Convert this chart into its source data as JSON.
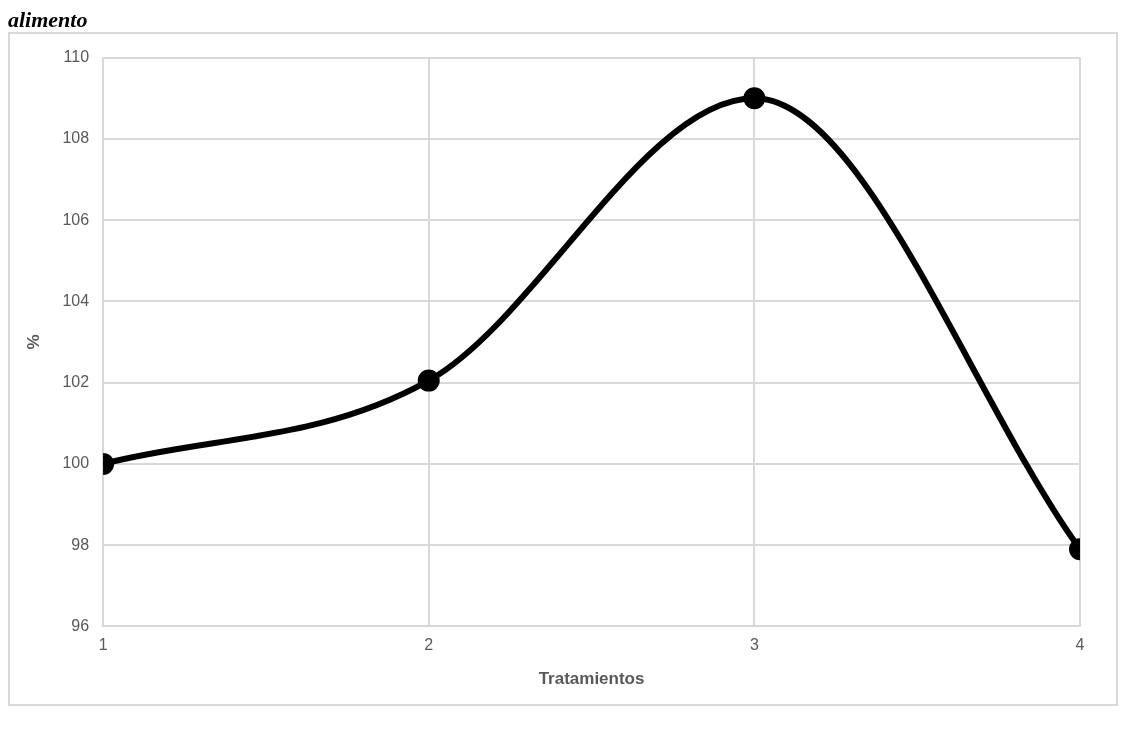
{
  "chart_data": {
    "type": "line",
    "title": "alimento",
    "xlabel": "Tratamientos",
    "ylabel": "%",
    "x": [
      1,
      2,
      3,
      4
    ],
    "series": [
      {
        "color": "#000000",
        "values": [
          100,
          102.05,
          109,
          97.9
        ]
      }
    ],
    "xlim": [
      1,
      4
    ],
    "xticks": [
      1,
      2,
      3,
      4
    ],
    "ylim": [
      96,
      110
    ],
    "yticks": [
      96,
      98,
      100,
      102,
      104,
      106,
      108,
      110
    ],
    "grid": true,
    "legend": false,
    "marker": "circle",
    "line_style": "solid"
  }
}
